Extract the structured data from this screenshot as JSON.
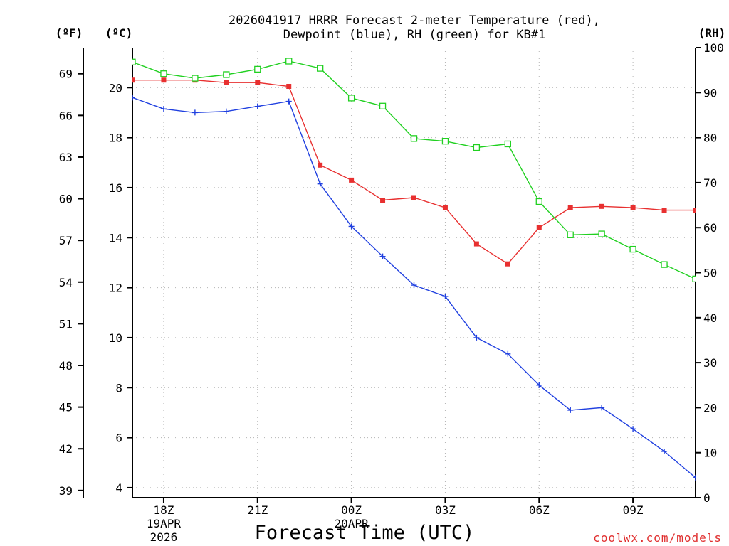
{
  "chart_data": {
    "type": "line",
    "title_line1": "2026041917 HRRR Forecast 2-meter Temperature (red),",
    "title_line2": "Dewpoint (blue), RH (green) for KB#1",
    "xlabel": "Forecast Time (UTC)",
    "credit": "coolwx.com/models",
    "units": {
      "f": "(ºF)",
      "c": "(ºC)",
      "rh": "(RH)"
    },
    "x_hours": [
      17,
      18,
      19,
      20,
      21,
      22,
      23,
      24,
      25,
      26,
      27,
      28,
      29,
      30,
      31,
      32,
      33,
      34,
      35
    ],
    "xlim": [
      17,
      35
    ],
    "x_ticks": [
      {
        "hour": 18,
        "label": "18Z",
        "sub1": "19APR",
        "sub2": "2026"
      },
      {
        "hour": 21,
        "label": "21Z",
        "sub1": "",
        "sub2": ""
      },
      {
        "hour": 24,
        "label": "00Z",
        "sub1": "20APR",
        "sub2": ""
      },
      {
        "hour": 27,
        "label": "03Z",
        "sub1": "",
        "sub2": ""
      },
      {
        "hour": 30,
        "label": "06Z",
        "sub1": "",
        "sub2": ""
      },
      {
        "hour": 33,
        "label": "09Z",
        "sub1": "",
        "sub2": ""
      }
    ],
    "c_ylim": [
      3.6,
      21.6
    ],
    "c_ticks": [
      4,
      6,
      8,
      10,
      12,
      14,
      16,
      18,
      20
    ],
    "f_ticks": [
      39,
      42,
      45,
      48,
      51,
      54,
      57,
      60,
      63,
      66,
      69
    ],
    "rh_ylim": [
      0,
      100
    ],
    "rh_ticks": [
      0,
      10,
      20,
      30,
      40,
      50,
      60,
      70,
      80,
      90,
      100
    ],
    "series": [
      {
        "name": "Temperature",
        "color": "#e83030",
        "marker": "filled-square",
        "axis": "c",
        "values": [
          20.3,
          20.3,
          20.3,
          20.2,
          20.2,
          20.05,
          16.9,
          16.3,
          15.5,
          15.6,
          15.2,
          13.75,
          12.95,
          14.4,
          15.2,
          15.25,
          15.2,
          15.1,
          15.1
        ]
      },
      {
        "name": "Dewpoint",
        "color": "#2040e0",
        "marker": "plus",
        "axis": "c",
        "values": [
          19.6,
          19.15,
          19.0,
          19.05,
          19.25,
          19.45,
          16.15,
          14.45,
          13.25,
          12.1,
          11.65,
          10.0,
          9.35,
          8.1,
          7.1,
          7.2,
          6.35,
          5.45,
          4.4
        ]
      },
      {
        "name": "RH",
        "color": "#20d020",
        "marker": "open-square",
        "axis": "rh",
        "values": [
          96.8,
          94.2,
          93.2,
          94.0,
          95.2,
          97.0,
          95.4,
          88.8,
          87.0,
          79.8,
          79.2,
          77.8,
          78.6,
          65.8,
          58.4,
          58.6,
          55.2,
          51.8,
          48.6
        ]
      }
    ]
  }
}
